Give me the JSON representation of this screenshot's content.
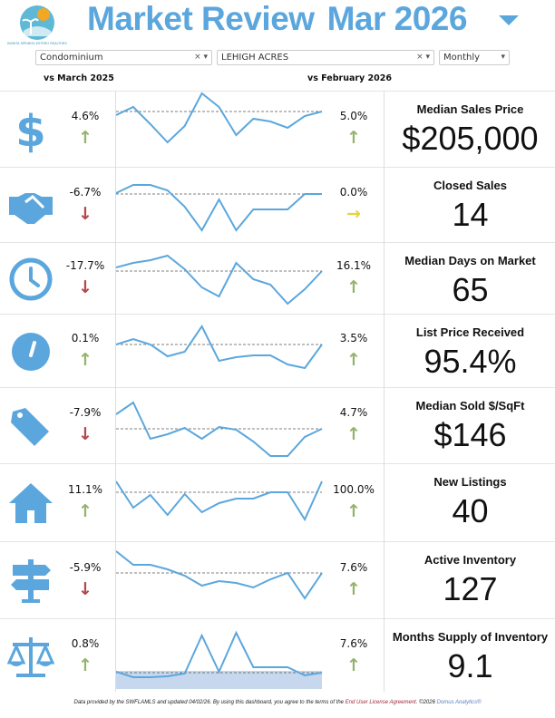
{
  "logo": {
    "text": "BONITA SPRINGS-ESTERO REALTORS"
  },
  "header": {
    "title": "Market Review",
    "period": "Mar 2026"
  },
  "filters": {
    "property_type": "Condominium",
    "area": "LEHIGH ACRES",
    "frequency": "Monthly"
  },
  "compare": {
    "left": "vs March 2025",
    "right": "vs February 2026"
  },
  "colors": {
    "accent": "#5ba7dd",
    "up": "#94b36b",
    "down": "#b4474b",
    "flat": "#e6d33e"
  },
  "metrics": [
    {
      "icon": "dollar-icon",
      "yoy": "4.6%",
      "yoy_dir": "up",
      "mom": "5.0%",
      "mom_dir": "up",
      "title": "Median Sales Price",
      "value": "$205,000",
      "trend": [
        53,
        62,
        43,
        23,
        41,
        77,
        62,
        31,
        49,
        46,
        39,
        52,
        57
      ],
      "ref": 57
    },
    {
      "icon": "handshake-icon",
      "yoy": "-6.7%",
      "yoy_dir": "down",
      "mom": "0.0%",
      "mom_dir": "flat",
      "title": "Closed Sales",
      "value": "14",
      "trend": [
        50,
        59,
        59,
        53,
        35,
        9,
        43,
        9,
        32,
        32,
        32,
        49,
        49
      ],
      "ref": 49
    },
    {
      "icon": "clock-icon",
      "yoy": "-17.7%",
      "yoy_dir": "down",
      "mom": "16.1%",
      "mom_dir": "up",
      "title": "Median Days on Market",
      "value": "65",
      "trend": [
        47,
        52,
        55,
        60,
        45,
        25,
        15,
        52,
        34,
        28,
        7,
        23,
        43
      ],
      "ref": 43
    },
    {
      "icon": "gauge-icon",
      "yoy": "0.1%",
      "yoy_dir": "up",
      "mom": "3.5%",
      "mom_dir": "up",
      "title": "List Price Received",
      "value": "95.4%",
      "trend": [
        43,
        49,
        43,
        30,
        35,
        63,
        25,
        29,
        31,
        31,
        21,
        17,
        43
      ],
      "ref": 43
    },
    {
      "icon": "tag-icon",
      "yoy": "-7.9%",
      "yoy_dir": "down",
      "mom": "4.7%",
      "mom_dir": "up",
      "title": "Median Sold $/SqFt",
      "value": "$146",
      "trend": [
        50,
        63,
        23,
        28,
        35,
        23,
        36,
        33,
        20,
        4,
        4,
        25,
        34
      ],
      "ref": 34
    },
    {
      "icon": "house-icon",
      "yoy": "11.1%",
      "yoy_dir": "up",
      "mom": "100.0%",
      "mom_dir": "up",
      "title": "New Listings",
      "value": "40",
      "trend": [
        62,
        33,
        47,
        25,
        48,
        28,
        38,
        43,
        43,
        50,
        50,
        20,
        62
      ],
      "ref": 50
    },
    {
      "icon": "signpost-icon",
      "yoy": "-5.9%",
      "yoy_dir": "down",
      "mom": "7.6%",
      "mom_dir": "up",
      "title": "Active Inventory",
      "value": "127",
      "trend": [
        70,
        55,
        55,
        50,
        43,
        32,
        37,
        35,
        30,
        39,
        46,
        18,
        46
      ],
      "ref": 46
    },
    {
      "icon": "scales-icon",
      "yoy": "0.8%",
      "yoy_dir": "up",
      "mom": "7.6%",
      "mom_dir": "up",
      "title": "Months Supply of Inventory",
      "value": "9.1",
      "trend": [
        20,
        14,
        14,
        15,
        18,
        60,
        20,
        63,
        25,
        25,
        25,
        16,
        19
      ],
      "ref": 19
    }
  ],
  "footer": {
    "text": "Data provided by the SWFLAMLS and updated 04/02/26.  By using this dashboard, you agree to the terms of the ",
    "license": "End User License Agreement.",
    "copyright": " ©2026 ",
    "brand": "Domus Analytics®"
  }
}
